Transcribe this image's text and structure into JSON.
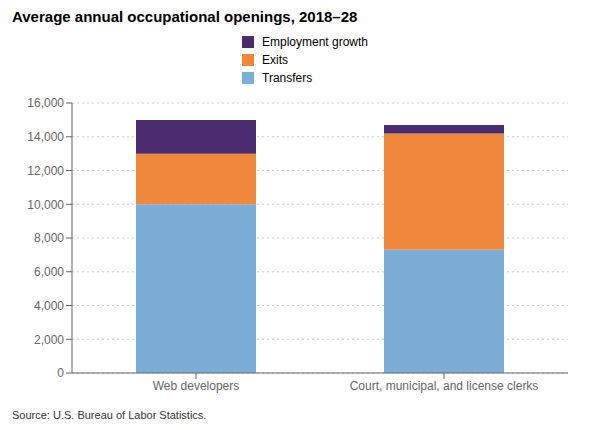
{
  "chart_data": {
    "type": "bar",
    "title": "Average annual occupational openings, 2018–28",
    "annotations": [
      "Source: U.S. Bureau of Labor Statistics."
    ],
    "categories": [
      "Web developers",
      "Court, municipal, and license clerks"
    ],
    "series": [
      {
        "name": "Transfers",
        "color": "#7AAED6",
        "values": [
          10000,
          7300
        ]
      },
      {
        "name": "Exits",
        "color": "#F0883C",
        "values": [
          3000,
          6900
        ]
      },
      {
        "name": "Employment growth",
        "color": "#4B2C6E",
        "values": [
          2000,
          500
        ]
      }
    ],
    "stacked": true,
    "ylim": [
      0,
      16000
    ],
    "yticks": [
      0,
      {
        "value": 2000,
        "label": "2,000"
      },
      {
        "value": 4000,
        "label": "4,000"
      },
      {
        "value": 6000,
        "label": "6,000"
      },
      {
        "value": 8000,
        "label": "8,000"
      },
      {
        "value": 10000,
        "label": "10,000"
      },
      {
        "value": 12000,
        "label": "12,000"
      },
      {
        "value": 14000,
        "label": "14,000"
      },
      {
        "value": 16000,
        "label": "16,000"
      }
    ],
    "grid": true
  }
}
